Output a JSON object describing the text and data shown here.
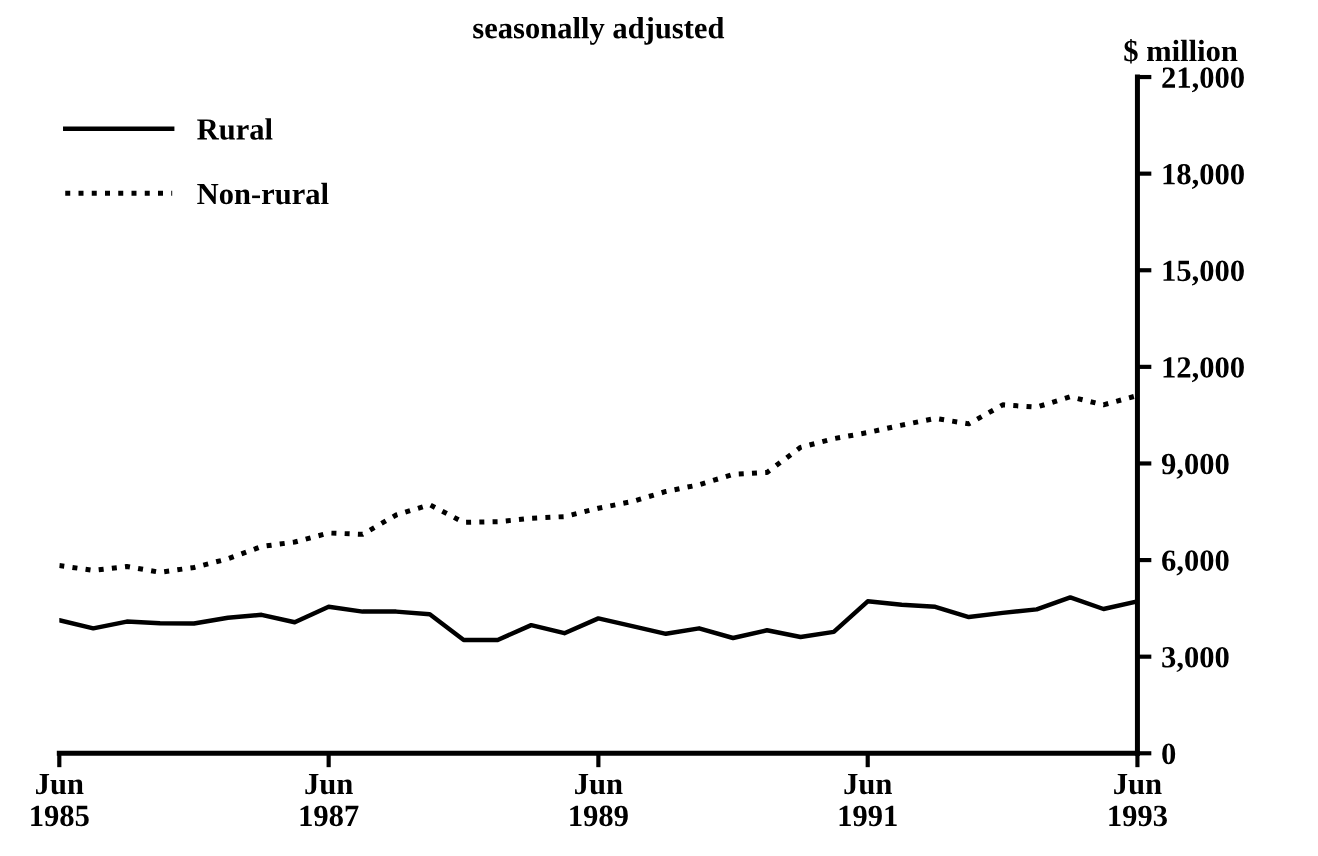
{
  "chart_data": {
    "type": "line",
    "title": "seasonally adjusted",
    "ylabel": "$ million",
    "x": [
      "1985-06",
      "1985-09",
      "1985-12",
      "1986-03",
      "1986-06",
      "1986-09",
      "1986-12",
      "1987-03",
      "1987-06",
      "1987-09",
      "1987-12",
      "1988-03",
      "1988-06",
      "1988-09",
      "1988-12",
      "1989-03",
      "1989-06",
      "1989-09",
      "1989-12",
      "1990-03",
      "1990-06",
      "1990-09",
      "1990-12",
      "1991-03",
      "1991-06",
      "1991-09",
      "1991-12",
      "1992-03",
      "1992-06",
      "1992-09",
      "1992-12",
      "1993-03",
      "1993-06"
    ],
    "series": [
      {
        "name": "Rural",
        "color": "#000000",
        "line_style": "solid",
        "values": [
          4130,
          3880,
          4090,
          4040,
          4030,
          4210,
          4300,
          4070,
          4550,
          4400,
          4400,
          4320,
          3520,
          3520,
          3980,
          3730,
          4190,
          3950,
          3710,
          3880,
          3580,
          3820,
          3610,
          3770,
          4720,
          4610,
          4550,
          4230,
          4360,
          4470,
          4840,
          4480,
          4720
        ]
      },
      {
        "name": "Non-rural",
        "color": "#000000",
        "line_style": "dotted",
        "values": [
          5830,
          5680,
          5800,
          5620,
          5770,
          6040,
          6420,
          6560,
          6840,
          6800,
          7400,
          7720,
          7170,
          7190,
          7300,
          7350,
          7610,
          7820,
          8130,
          8340,
          8660,
          8720,
          9500,
          9770,
          9960,
          10190,
          10400,
          10230,
          10820,
          10750,
          11070,
          10820,
          11110
        ]
      }
    ],
    "xlim": [
      "1985-06",
      "1993-06"
    ],
    "xticks": [
      {
        "value": "1985-06",
        "label": "Jun\n1985"
      },
      {
        "value": "1987-06",
        "label": "Jun\n1987"
      },
      {
        "value": "1989-06",
        "label": "Jun\n1989"
      },
      {
        "value": "1991-06",
        "label": "Jun\n1991"
      },
      {
        "value": "1993-06",
        "label": "Jun\n1993"
      }
    ],
    "ylim": [
      0,
      21000
    ],
    "yticks": [
      {
        "value": 0,
        "label": "0"
      },
      {
        "value": 3000,
        "label": "3,000"
      },
      {
        "value": 6000,
        "label": "6,000"
      },
      {
        "value": 9000,
        "label": "9,000"
      },
      {
        "value": 12000,
        "label": "12,000"
      },
      {
        "value": 15000,
        "label": "15,000"
      },
      {
        "value": 18000,
        "label": "18,000"
      },
      {
        "value": 21000,
        "label": "21,000"
      }
    ],
    "grid": false,
    "legend": "top left",
    "marker": "none"
  }
}
